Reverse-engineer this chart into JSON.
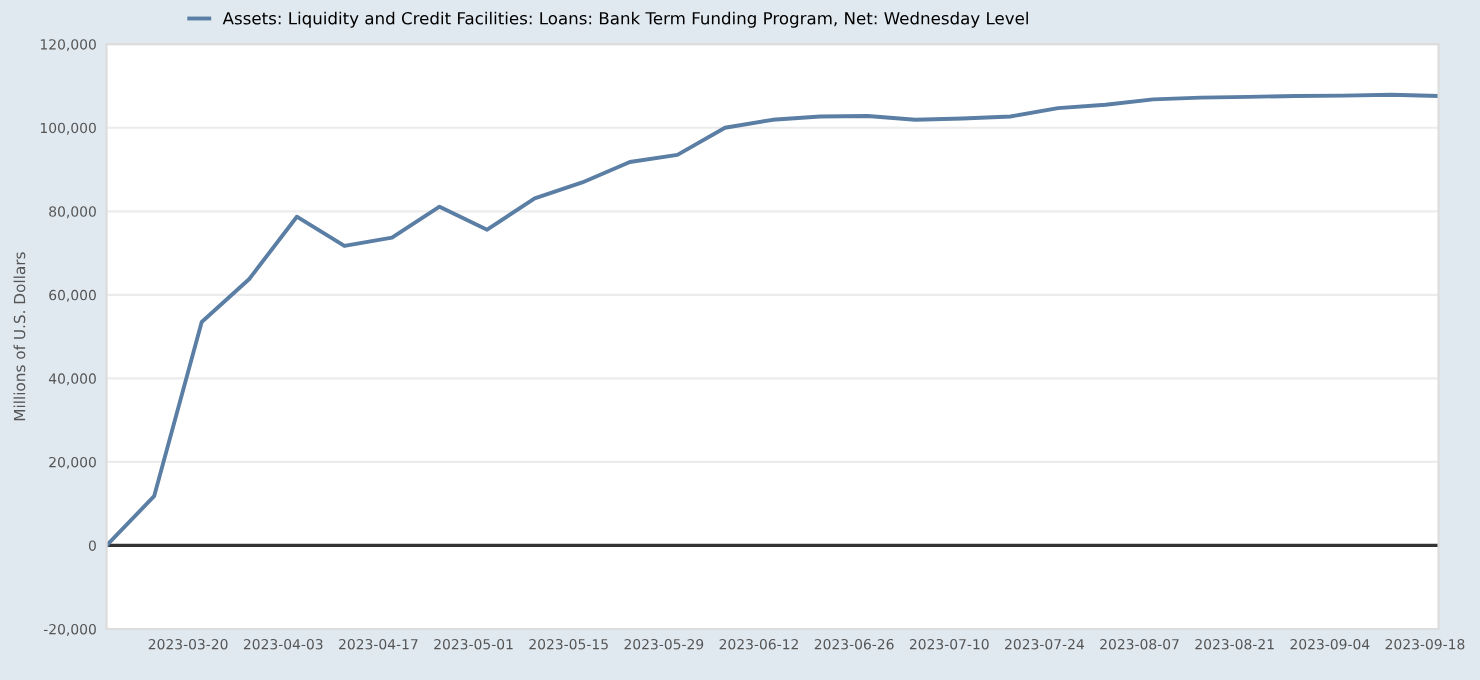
{
  "chart_data": {
    "type": "line",
    "x": [
      "2023-03-08",
      "2023-03-15",
      "2023-03-22",
      "2023-03-29",
      "2023-04-05",
      "2023-04-12",
      "2023-04-19",
      "2023-04-26",
      "2023-05-03",
      "2023-05-10",
      "2023-05-17",
      "2023-05-24",
      "2023-05-31",
      "2023-06-07",
      "2023-06-14",
      "2023-06-21",
      "2023-06-28",
      "2023-07-05",
      "2023-07-12",
      "2023-07-19",
      "2023-07-26",
      "2023-08-02",
      "2023-08-09",
      "2023-08-16",
      "2023-08-23",
      "2023-08-30",
      "2023-09-06",
      "2023-09-13",
      "2023-09-20"
    ],
    "series": [
      {
        "name": "Assets: Liquidity and Credit Facilities: Loans: Bank Term Funding Program, Net: Wednesday Level",
        "color": "#5b7ea4",
        "values": [
          0,
          11800,
          53500,
          63800,
          78700,
          71700,
          73700,
          81100,
          75600,
          83100,
          86900,
          91800,
          93500,
          100000,
          101900,
          102700,
          102800,
          101900,
          102200,
          102700,
          104700,
          105500,
          106800,
          107200,
          107400,
          107600,
          107700,
          107900,
          107600
        ]
      }
    ],
    "ylabel": "Millions of U.S. Dollars",
    "xlim": [
      "2023-03-08",
      "2023-09-20"
    ],
    "xticks": [
      "2023-03-20",
      "2023-04-03",
      "2023-04-17",
      "2023-05-01",
      "2023-05-15",
      "2023-05-29",
      "2023-06-12",
      "2023-06-26",
      "2023-07-10",
      "2023-07-24",
      "2023-08-07",
      "2023-08-21",
      "2023-09-04",
      "2023-09-18"
    ],
    "ylim": [
      -20000,
      120000
    ],
    "yticks": [
      {
        "value": -20000,
        "label": "-20,000"
      },
      {
        "value": 0,
        "label": "0"
      },
      {
        "value": 20000,
        "label": "20,000"
      },
      {
        "value": 40000,
        "label": "40,000"
      },
      {
        "value": 60000,
        "label": "60,000"
      },
      {
        "value": 80000,
        "label": "80,000"
      },
      {
        "value": 100000,
        "label": "100,000"
      },
      {
        "value": 120000,
        "label": "120,000"
      }
    ],
    "ref_lines": [
      {
        "axis": "y",
        "value": 0,
        "color": "#333333",
        "line_style": "solid"
      }
    ],
    "grid": "y",
    "legend": "top left",
    "marker": "none",
    "line_style": "solid"
  }
}
